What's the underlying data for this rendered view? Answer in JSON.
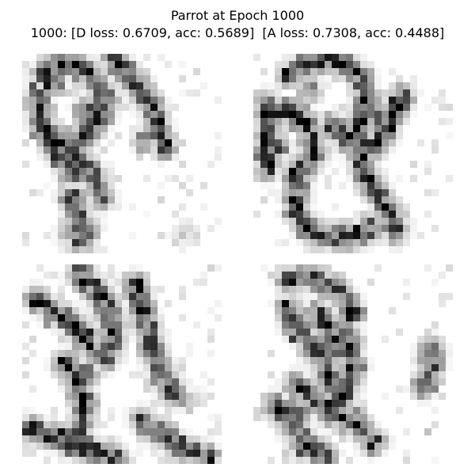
{
  "figure": {
    "title_line_1": "Parrot at Epoch 1000",
    "title_line_2": "1000: [D loss: 0.6709, acc: 0.5689]  [A loss: 0.7308, acc: 0.4488]"
  }
}
